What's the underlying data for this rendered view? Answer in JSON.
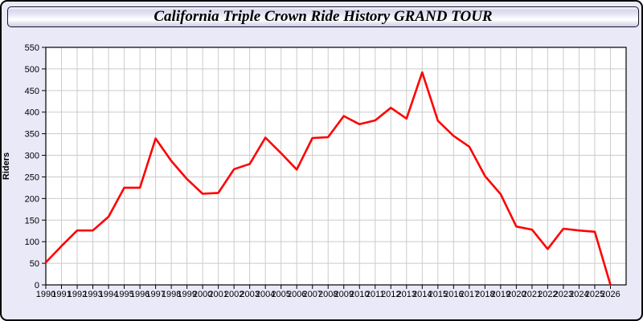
{
  "title_bar": {
    "title": "California Triple Crown Ride History GRAND TOUR"
  },
  "colors": {
    "window_background": "#e9e9f8",
    "plot_background": "#ffffff",
    "gridline": "#cbcbcb",
    "axis_frame": "#000000",
    "series_line": "#ff0000",
    "text": "#000000"
  },
  "chart_data": {
    "type": "line",
    "title": "California Triple Crown Ride History GRAND TOUR",
    "xlabel": "",
    "ylabel": "Riders",
    "ylim": [
      0,
      550
    ],
    "ytick_step": 50,
    "grid": true,
    "legend": false,
    "x": [
      1990,
      1991,
      1992,
      1993,
      1994,
      1995,
      1996,
      1997,
      1998,
      1999,
      2000,
      2001,
      2002,
      2003,
      2004,
      2005,
      2006,
      2007,
      2008,
      2009,
      2010,
      2011,
      2012,
      2013,
      2014,
      2015,
      2016,
      2017,
      2018,
      2019,
      2020,
      2021,
      2022,
      2023,
      2024,
      2025,
      2026
    ],
    "series": [
      {
        "name": "Riders",
        "color": "#ff0000",
        "values": [
          52,
          90,
          126,
          126,
          158,
          225,
          225,
          339,
          287,
          245,
          211,
          213,
          268,
          280,
          341,
          305,
          267,
          340,
          342,
          391,
          372,
          381,
          410,
          385,
          492,
          380,
          345,
          320,
          252,
          210,
          135,
          128,
          83,
          130,
          126,
          123,
          0
        ]
      }
    ]
  }
}
